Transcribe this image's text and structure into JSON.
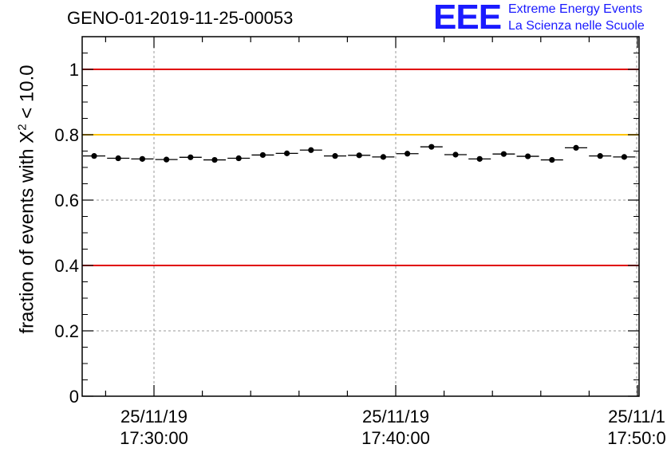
{
  "title": "GENO-01-2019-11-25-00053",
  "logo": {
    "mark": "EEE",
    "line1": "Extreme Energy Events",
    "line2": "La Scienza nelle Scuole"
  },
  "colors": {
    "red": "#e00000",
    "yellow": "#ffc400",
    "logo": "#1a1aff"
  },
  "chart_data": {
    "type": "scatter",
    "title": "GENO-01-2019-11-25-00053",
    "ylabel_prefix": "fraction of events with X",
    "ylabel_sup": "2",
    "ylabel_suffix": " < 10.0",
    "ylim": [
      0,
      1.1
    ],
    "yticks": [
      "0",
      "0.2",
      "0.4",
      "0.6",
      "0.8",
      "1"
    ],
    "xticks": [
      {
        "date": "25/11/19",
        "time": "17:30:00"
      },
      {
        "date": "25/11/19",
        "time": "17:40:00"
      },
      {
        "date": "25/11/1",
        "time": "17:50:0"
      }
    ],
    "grid": true,
    "reference_lines": [
      {
        "y": 1.0,
        "color": "red"
      },
      {
        "y": 0.8,
        "color": "yellow"
      },
      {
        "y": 0.4,
        "color": "red"
      }
    ],
    "values": [
      0.735,
      0.728,
      0.726,
      0.724,
      0.731,
      0.723,
      0.728,
      0.738,
      0.743,
      0.753,
      0.735,
      0.737,
      0.732,
      0.742,
      0.763,
      0.739,
      0.726,
      0.741,
      0.734,
      0.723,
      0.76,
      0.735,
      0.732
    ]
  }
}
